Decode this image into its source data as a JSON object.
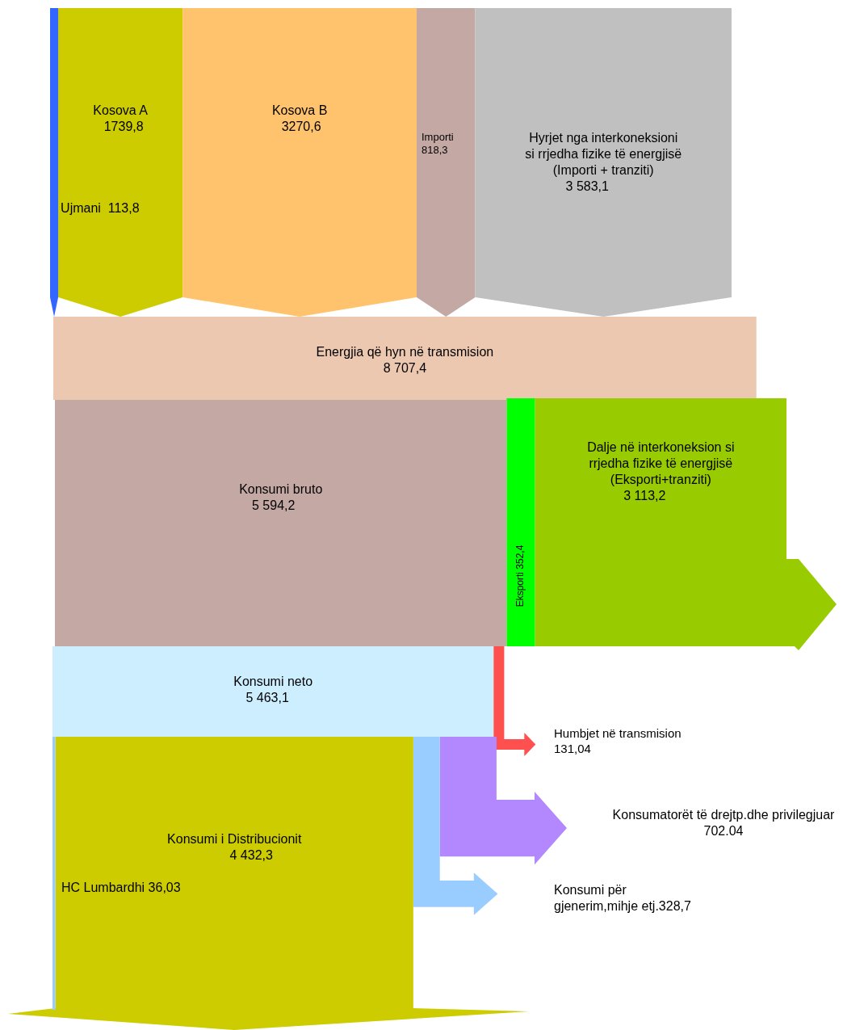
{
  "chart_data": {
    "type": "other",
    "categories": [
      "Kosova A",
      "Ujmani",
      "Kosova B",
      "Importi",
      "Hyrjet nga interkoneksioni\nsi rrjedha fizike të energjisë\n(Importi + tranziti)",
      "Energjia që hyn në transmision",
      "Konsumi bruto",
      "Eksporti",
      "Dalje në interkoneksion si\nrrjedha fizike të energjisë\n(Eksporti+tranziti)",
      "Konsumi neto",
      "Humbjet në transmision",
      "Konsumatorët të drejtp.dhe privilegjuar",
      "Konsumi për\ngjenerim,mihje etj.",
      "Konsumi i Distribucionit",
      "HC Lumbardhi"
    ],
    "values": [
      1739.8,
      113.8,
      3270.6,
      818.3,
      3583.1,
      8707.4,
      5594.2,
      352.4,
      3113.2,
      5463.1,
      131.04,
      702.04,
      328.7,
      4432.3,
      36.03
    ],
    "value_labels": [
      "1739,8",
      "113,8",
      "3270,6",
      "818,3",
      "3 583,1",
      "8 707,4",
      "5 594,2",
      "352,4",
      "3 113,2",
      "5 463,1",
      "131,04",
      "702.04",
      "328,7",
      "4 432,3",
      "36,03"
    ],
    "colors": [
      "#cccc00",
      "#3366ff",
      "#ffc36e",
      "#c4a8a4",
      "#c0c0c0",
      "#ecc8b0",
      "#c4a8a4",
      "#00ff00",
      "#99cc00",
      "#cceeff",
      "#ff5050",
      "#b388ff",
      "#99ccff",
      "#cccc00",
      "#99ccff"
    ]
  }
}
